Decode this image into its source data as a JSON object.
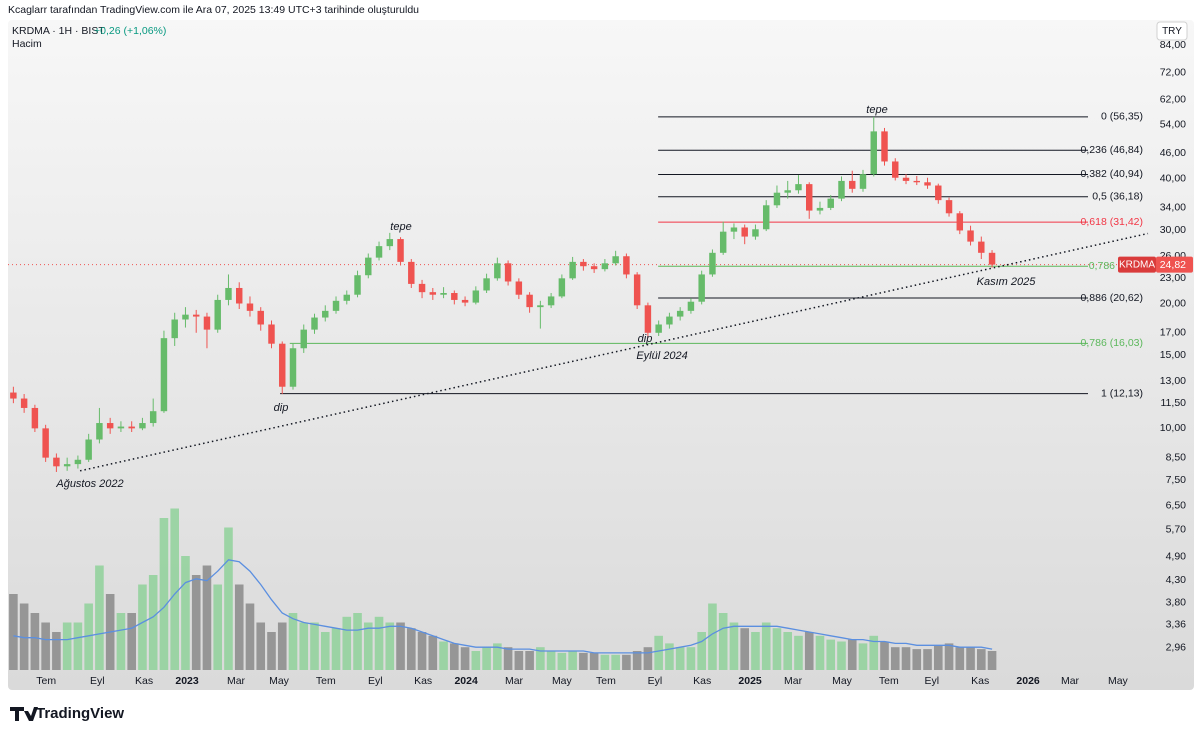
{
  "header": {
    "credit": "Kcaglarr tarafından TradingView.com ile Ara 07, 2025 13:49 UTC+3 tarihinde oluşturuldu",
    "symbol_line": "KRDMA · 1H · BIST",
    "change": "+0,26 (+1,06%)",
    "volume_label": "Hacim",
    "currency": "TRY",
    "logo": "TradingView"
  },
  "chart_data": {
    "type": "candlestick",
    "log_scale": true,
    "up_color": "#66bb6a",
    "down_color": "#ef5350",
    "x": [
      1,
      3,
      5,
      7,
      9,
      11,
      13,
      15,
      17,
      19,
      21,
      23,
      25,
      27,
      29,
      31,
      33,
      35,
      37,
      39,
      41,
      43,
      45,
      47,
      49,
      51,
      53,
      55,
      57,
      59,
      61,
      63,
      65,
      67,
      69,
      71,
      73,
      75,
      77,
      79,
      81,
      83,
      85,
      87,
      89,
      91,
      93,
      95,
      97,
      99,
      101,
      103,
      105,
      107,
      109,
      111,
      113,
      115,
      117,
      119,
      121,
      123,
      125,
      127,
      129,
      131,
      133,
      135,
      137,
      139,
      141,
      143,
      145,
      147,
      149,
      151,
      153,
      155,
      157,
      159,
      161,
      163,
      165,
      167,
      169,
      171,
      173,
      175,
      177,
      179,
      181,
      183
    ],
    "xlim": [
      0,
      212
    ],
    "xticks": [
      {
        "value": 7.1,
        "label": "Tem"
      },
      {
        "value": 16.6,
        "label": "Eyl"
      },
      {
        "value": 25.3,
        "label": "Kas"
      },
      {
        "value": 33.3,
        "label": "2023"
      },
      {
        "value": 42.4,
        "label": "Mar"
      },
      {
        "value": 50.4,
        "label": "May"
      },
      {
        "value": 59.1,
        "label": "Tem"
      },
      {
        "value": 68.3,
        "label": "Eyl"
      },
      {
        "value": 77.2,
        "label": "Kas"
      },
      {
        "value": 85.2,
        "label": "2024"
      },
      {
        "value": 94.1,
        "label": "Mar"
      },
      {
        "value": 103.0,
        "label": "May"
      },
      {
        "value": 111.2,
        "label": "Tem"
      },
      {
        "value": 120.3,
        "label": "Eyl"
      },
      {
        "value": 129.1,
        "label": "Kas"
      },
      {
        "value": 138.0,
        "label": "2025"
      },
      {
        "value": 146.0,
        "label": "Mar"
      },
      {
        "value": 155.1,
        "label": "May"
      },
      {
        "value": 163.8,
        "label": "Tem"
      },
      {
        "value": 171.8,
        "label": "Eyl"
      },
      {
        "value": 180.8,
        "label": "Kas"
      },
      {
        "value": 189.7,
        "label": "2026"
      },
      {
        "value": 197.5,
        "label": "Mar"
      },
      {
        "value": 206.4,
        "label": "May"
      }
    ],
    "open": [
      12.2,
      11.8,
      11.2,
      10.0,
      8.5,
      8.1,
      8.2,
      8.4,
      9.4,
      10.3,
      10.0,
      10.1,
      10.0,
      10.3,
      11.0,
      16.5,
      18.3,
      18.8,
      18.6,
      17.3,
      20.4,
      21.8,
      20.0,
      19.2,
      17.8,
      16.0,
      12.6,
      15.6,
      17.3,
      18.5,
      19.2,
      20.3,
      21.0,
      23.4,
      25.8,
      27.5,
      28.6,
      25.2,
      22.3,
      21.3,
      21.0,
      21.2,
      20.4,
      20.1,
      21.5,
      23.0,
      25.0,
      22.6,
      21.0,
      19.6,
      19.8,
      20.8,
      23.0,
      25.2,
      24.6,
      24.2,
      25.0,
      26.0,
      23.5,
      19.8,
      17.0,
      17.8,
      18.6,
      19.2,
      20.2,
      23.5,
      26.5,
      29.8,
      30.5,
      29.0,
      30.2,
      34.5,
      37.0,
      37.5,
      38.8,
      33.5,
      34.0,
      35.8,
      39.5,
      37.8,
      41.0,
      52.0,
      44.0,
      40.2,
      39.5,
      39.2,
      38.5,
      35.5,
      33.0,
      30.0,
      28.2,
      26.5
    ],
    "high": [
      12.6,
      12.1,
      11.4,
      10.2,
      8.7,
      8.5,
      8.6,
      9.7,
      11.2,
      10.6,
      10.4,
      10.4,
      10.6,
      11.8,
      17.2,
      19.0,
      19.6,
      19.3,
      19.0,
      21.0,
      23.5,
      22.5,
      20.8,
      19.6,
      18.2,
      16.2,
      16.0,
      17.8,
      18.9,
      19.8,
      20.8,
      21.5,
      24.0,
      26.4,
      28.2,
      29.6,
      28.9,
      25.6,
      22.8,
      21.8,
      21.9,
      21.5,
      20.8,
      22.0,
      23.6,
      25.8,
      25.4,
      23.0,
      21.3,
      20.3,
      21.2,
      23.5,
      25.9,
      25.6,
      25.0,
      25.6,
      26.8,
      26.4,
      23.8,
      20.1,
      18.2,
      19.0,
      19.6,
      20.6,
      24.0,
      27.0,
      31.5,
      31.2,
      31.0,
      31.0,
      35.5,
      38.5,
      39.5,
      40.8,
      39.2,
      35.2,
      36.5,
      40.5,
      41.8,
      42.0,
      56.35,
      53.0,
      44.8,
      41.0,
      40.6,
      40.2,
      38.9,
      36.0,
      33.4,
      30.8,
      29.0,
      26.9
    ],
    "low": [
      11.5,
      10.9,
      9.8,
      8.3,
      7.85,
      7.9,
      8.0,
      8.3,
      9.2,
      9.7,
      9.8,
      9.8,
      9.9,
      10.1,
      10.9,
      15.8,
      17.5,
      17.0,
      15.6,
      17.0,
      19.8,
      19.4,
      18.6,
      17.2,
      15.6,
      12.1,
      12.4,
      15.2,
      16.9,
      18.1,
      18.9,
      19.9,
      20.7,
      23.0,
      25.4,
      26.9,
      24.7,
      21.8,
      20.6,
      20.4,
      20.6,
      19.9,
      19.7,
      19.9,
      21.2,
      22.7,
      22.1,
      20.5,
      19.0,
      17.4,
      19.5,
      20.6,
      22.8,
      24.0,
      23.7,
      23.9,
      24.7,
      23.0,
      19.4,
      16.5,
      16.7,
      17.4,
      18.2,
      18.9,
      19.9,
      23.2,
      26.2,
      28.6,
      27.8,
      28.5,
      29.9,
      34.0,
      35.8,
      36.8,
      32.0,
      32.8,
      33.6,
      35.3,
      37.0,
      37.2,
      40.5,
      43.0,
      39.6,
      38.8,
      38.6,
      37.8,
      34.8,
      32.4,
      29.4,
      27.6,
      25.6,
      24.4
    ],
    "close": [
      11.8,
      11.2,
      10.0,
      8.5,
      8.1,
      8.2,
      8.4,
      9.4,
      10.3,
      10.0,
      10.1,
      10.0,
      10.3,
      11.0,
      16.5,
      18.3,
      18.8,
      18.6,
      17.3,
      20.4,
      21.8,
      20.0,
      19.2,
      17.8,
      16.0,
      12.6,
      15.6,
      17.3,
      18.5,
      19.2,
      20.3,
      21.0,
      23.4,
      25.8,
      27.5,
      28.6,
      25.2,
      22.3,
      21.3,
      21.0,
      21.2,
      20.4,
      20.1,
      21.5,
      23.0,
      25.0,
      22.6,
      21.0,
      19.6,
      19.8,
      20.8,
      23.0,
      25.2,
      24.6,
      24.2,
      25.0,
      26.0,
      23.5,
      19.8,
      17.0,
      17.8,
      18.6,
      19.2,
      20.2,
      23.5,
      26.5,
      29.8,
      30.5,
      29.0,
      30.2,
      34.5,
      37.0,
      37.5,
      38.8,
      33.5,
      34.0,
      35.8,
      39.5,
      37.8,
      41.0,
      52.0,
      44.0,
      40.2,
      39.5,
      39.2,
      38.5,
      35.5,
      33.0,
      30.0,
      28.2,
      26.5,
      24.82
    ],
    "ylim": [
      2.34,
      96.5
    ],
    "yticks": [
      {
        "value": 84,
        "label": "84,00"
      },
      {
        "value": 72,
        "label": "72,00"
      },
      {
        "value": 62,
        "label": "62,00"
      },
      {
        "value": 54,
        "label": "54,00"
      },
      {
        "value": 46,
        "label": "46,00"
      },
      {
        "value": 40,
        "label": "40,00"
      },
      {
        "value": 34,
        "label": "34,00"
      },
      {
        "value": 30,
        "label": "30,00"
      },
      {
        "value": 26,
        "label": "26,00"
      },
      {
        "value": 23,
        "label": "23,00"
      },
      {
        "value": 20,
        "label": "20,00"
      },
      {
        "value": 17,
        "label": "17,00"
      },
      {
        "value": 15,
        "label": "15,00"
      },
      {
        "value": 13,
        "label": "13,00"
      },
      {
        "value": 11.5,
        "label": "11,50"
      },
      {
        "value": 10,
        "label": "10,00"
      },
      {
        "value": 8.5,
        "label": "8,50"
      },
      {
        "value": 7.5,
        "label": "7,50"
      },
      {
        "value": 6.5,
        "label": "6,50"
      },
      {
        "value": 5.7,
        "label": "5,70"
      },
      {
        "value": 4.9,
        "label": "4,90"
      },
      {
        "value": 4.3,
        "label": "4,30"
      },
      {
        "value": 3.8,
        "label": "3,80"
      },
      {
        "value": 3.36,
        "label": "3,36"
      },
      {
        "value": 2.96,
        "label": "2,96"
      }
    ],
    "volume": {
      "values": [
        40,
        35,
        30,
        25,
        20,
        25,
        25,
        35,
        55,
        40,
        30,
        30,
        45,
        50,
        80,
        85,
        60,
        50,
        55,
        45,
        75,
        45,
        35,
        25,
        20,
        25,
        30,
        25,
        25,
        20,
        22,
        28,
        30,
        25,
        28,
        25,
        25,
        22,
        20,
        18,
        15,
        14,
        12,
        10,
        12,
        14,
        12,
        10,
        10,
        12,
        10,
        9,
        10,
        9,
        9,
        8,
        8,
        8,
        10,
        12,
        18,
        14,
        12,
        12,
        20,
        35,
        30,
        25,
        22,
        20,
        25,
        22,
        20,
        18,
        20,
        18,
        16,
        15,
        16,
        14,
        18,
        15,
        12,
        12,
        11,
        11,
        13,
        14,
        12,
        12,
        11,
        10
      ],
      "ma": [
        18,
        17,
        17,
        16,
        16,
        16,
        17,
        18,
        19,
        20,
        21,
        22,
        25,
        28,
        33,
        40,
        46,
        48,
        47,
        52,
        58,
        57,
        52,
        45,
        37,
        30,
        27,
        25,
        24,
        23,
        22,
        21,
        21,
        22,
        22,
        23,
        23,
        22,
        20,
        18,
        16,
        14,
        13,
        12,
        12,
        12,
        11,
        11,
        11,
        10,
        10,
        10,
        10,
        10,
        9,
        9,
        9,
        9,
        9,
        9,
        10,
        11,
        12,
        13,
        15,
        19,
        22,
        23,
        23,
        23,
        23,
        23,
        22,
        21,
        20,
        19,
        18,
        17,
        16,
        16,
        15,
        15,
        14,
        14,
        13,
        13,
        13,
        13,
        12,
        12,
        12,
        11
      ],
      "ylim": [
        0,
        100
      ],
      "up_color": "#8fd19a",
      "down_color": "#8a8a8a",
      "ma_color": "#5b8fe0"
    },
    "fib_levels": [
      {
        "label": "0 (56,35)",
        "value": 56.35,
        "x_start": 120.9,
        "color": "#131722"
      },
      {
        "label": "0,236 (46,84)",
        "value": 46.84,
        "x_start": 120.9,
        "color": "#131722"
      },
      {
        "label": "0,382 (40,94)",
        "value": 40.94,
        "x_start": 120.9,
        "color": "#131722"
      },
      {
        "label": "0,5 (36,18)",
        "value": 36.18,
        "x_start": 120.9,
        "color": "#131722"
      },
      {
        "label": "0,618 (31,42)",
        "value": 31.42,
        "x_start": 120.9,
        "color": "#f23645"
      },
      {
        "label": "0,786",
        "value": 24.6,
        "x_start": 120.9,
        "color": "#5cb85c"
      },
      {
        "label": "0,886 (20,62)",
        "value": 20.62,
        "x_start": 120.9,
        "color": "#131722"
      },
      {
        "label": "0,786 (16,03)",
        "value": 16.03,
        "x_start": 52.4,
        "color": "#5cb85c"
      },
      {
        "label": "1 (12,13)",
        "value": 12.13,
        "x_start": 50.6,
        "color": "#131722"
      }
    ],
    "trendline": {
      "x": [
        13.4,
        212
      ],
      "y": [
        7.9,
        29.5
      ]
    },
    "annotations": [
      "tepe",
      "dip",
      "Ağustos 2022",
      "tepe",
      "dip",
      "Eylül 2024",
      "Kasım 2025"
    ],
    "last_price": {
      "symbol": "KRDMA",
      "value": 24.82,
      "label": "24,82",
      "color": "#ef5350"
    }
  }
}
